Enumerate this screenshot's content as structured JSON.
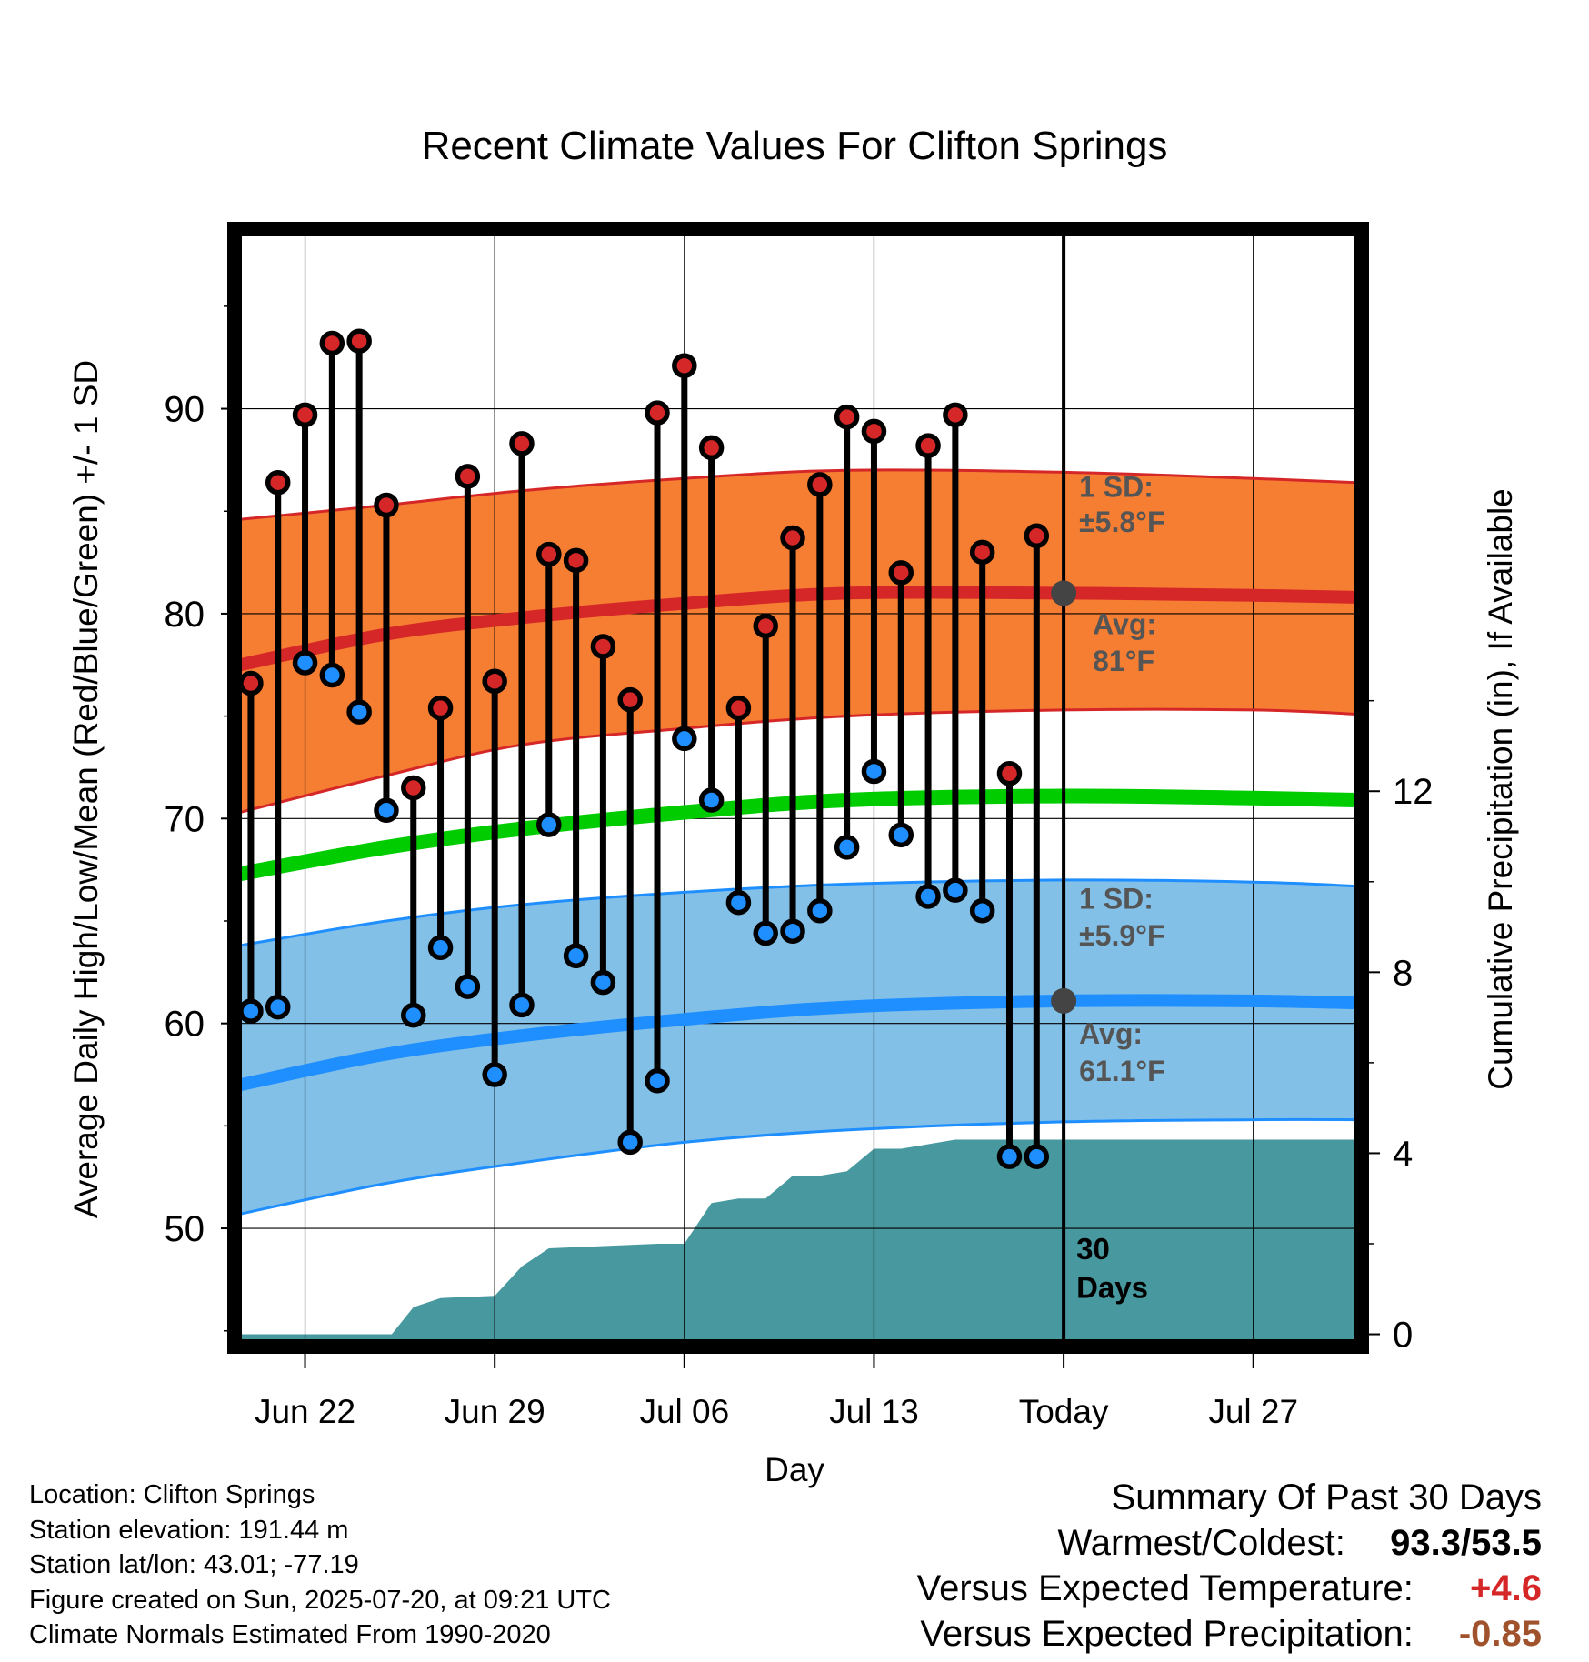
{
  "chart_data": {
    "type": "line",
    "title": "Recent Climate Values For Clifton Springs",
    "xlabel": "Day",
    "ylabel": "Average Daily High/Low/Mean (Red/Blue/Green) +/- 1 SD",
    "y2label": "Cumulative Precipitation (in), If Available",
    "xlim": [
      -2.4,
      38.8
    ],
    "ylim": [
      44.5,
      98.5
    ],
    "y2lim": [
      -0.15,
      24.3
    ],
    "x_ticks": [
      {
        "day": 0,
        "label": "Jun 22"
      },
      {
        "day": 7,
        "label": "Jun 29"
      },
      {
        "day": 14,
        "label": "Jul 06"
      },
      {
        "day": 21,
        "label": "Jul 13"
      },
      {
        "day": 28,
        "label": "Today"
      },
      {
        "day": 35,
        "label": "Jul 27"
      }
    ],
    "y_ticks": [
      "50",
      "60",
      "70",
      "80",
      "90"
    ],
    "y2_ticks": [
      "0",
      "4",
      "8",
      "12"
    ],
    "today_day": 28,
    "days": [
      -2,
      -1,
      0,
      1,
      2,
      3,
      4,
      5,
      6,
      7,
      8,
      9,
      10,
      11,
      12,
      13,
      14,
      15,
      16,
      17,
      18,
      19,
      20,
      21,
      22,
      23,
      24,
      25,
      26,
      27
    ],
    "highs": [
      76.6,
      86.4,
      89.7,
      93.2,
      93.3,
      85.3,
      71.5,
      75.4,
      86.7,
      76.7,
      88.3,
      82.9,
      82.6,
      78.4,
      75.8,
      89.8,
      92.1,
      88.1,
      75.4,
      79.4,
      83.7,
      86.3,
      89.6,
      88.9,
      82.0,
      88.2,
      89.7,
      83.0,
      72.2,
      83.8
    ],
    "lows": [
      60.6,
      60.8,
      77.6,
      77.0,
      75.2,
      70.4,
      60.4,
      63.7,
      61.8,
      57.5,
      60.9,
      69.7,
      63.3,
      62.0,
      54.2,
      57.2,
      73.9,
      70.9,
      65.9,
      64.4,
      64.5,
      65.5,
      68.6,
      72.3,
      69.2,
      66.2,
      66.5,
      65.5,
      53.5,
      53.5
    ],
    "normals": {
      "days": [
        -2.4,
        3,
        8,
        14,
        20,
        28,
        35,
        38.8
      ],
      "high_mean": [
        77.5,
        79.0,
        79.8,
        80.5,
        81.0,
        81.0,
        80.9,
        80.8
      ],
      "high_upper": [
        84.6,
        85.3,
        86.0,
        86.6,
        87.0,
        86.9,
        86.6,
        86.4
      ],
      "high_lower": [
        70.3,
        72.1,
        73.6,
        74.4,
        75.0,
        75.3,
        75.3,
        75.1
      ],
      "mean": [
        67.3,
        68.6,
        69.5,
        70.3,
        70.9,
        71.1,
        71.0,
        70.9
      ],
      "low_mean": [
        57.0,
        58.5,
        59.4,
        60.2,
        60.8,
        61.1,
        61.1,
        61.0
      ],
      "low_upper": [
        63.8,
        65.0,
        65.8,
        66.4,
        66.8,
        67.0,
        66.9,
        66.7
      ],
      "low_lower": [
        50.7,
        52.2,
        53.2,
        54.2,
        54.8,
        55.2,
        55.3,
        55.3
      ]
    },
    "precipitation": {
      "days": [
        -2.4,
        3.2,
        4,
        5,
        7,
        8,
        9,
        13,
        14,
        15,
        16,
        17,
        18,
        19,
        20,
        21,
        22,
        23,
        24,
        25,
        28,
        38.8
      ],
      "cumulative_in": [
        0.0,
        0.0,
        0.6,
        0.8,
        0.85,
        1.5,
        1.9,
        2.0,
        2.0,
        2.9,
        3.0,
        3.0,
        3.5,
        3.5,
        3.6,
        4.1,
        4.1,
        4.2,
        4.3,
        4.3,
        4.3,
        4.3
      ]
    },
    "annotations": {
      "high_sd_title": "1 SD:",
      "high_sd_value": "±5.8°F",
      "high_avg_title": "Avg:",
      "high_avg_value": "81°F",
      "low_sd_title": "1 SD:",
      "low_sd_value": "±5.9°F",
      "low_avg_title": "Avg:",
      "low_avg_value": "61.1°F",
      "days_count": "30",
      "days_word": "Days"
    },
    "grid": true,
    "legend": "none",
    "colors": {
      "high_dot": "#d62728",
      "low_dot": "#1f8fff",
      "high_band": "#f57e32",
      "high_band_edge": "#d62728",
      "high_mean_line": "#d62728",
      "low_band": "#82c0e8",
      "low_band_edge": "#1f8fff",
      "low_mean_line": "#1f8fff",
      "mean_line": "#00cc00",
      "precip_fill": "#48999f",
      "annotation_text": "#555555",
      "avg_marker": "#444444"
    }
  },
  "footer": {
    "location": "Location: Clifton Springs",
    "elevation": "Station elevation: 191.44 m",
    "latlon": "Station lat/lon: 43.01; -77.19",
    "created": "Figure created on Sun, 2025-07-20, at 09:21 UTC",
    "normals": "Climate Normals Estimated From 1990-2020"
  },
  "summary": {
    "heading": "Summary Of Past 30 Days",
    "warmest_label": "Warmest/Coldest:",
    "warmest_value": "93.3/53.5",
    "temp_label": "Versus Expected Temperature:",
    "temp_value": "+4.6",
    "temp_color": "#d62728",
    "precip_label": "Versus Expected Precipitation:",
    "precip_value": "-0.85",
    "precip_color": "#a0522d"
  }
}
